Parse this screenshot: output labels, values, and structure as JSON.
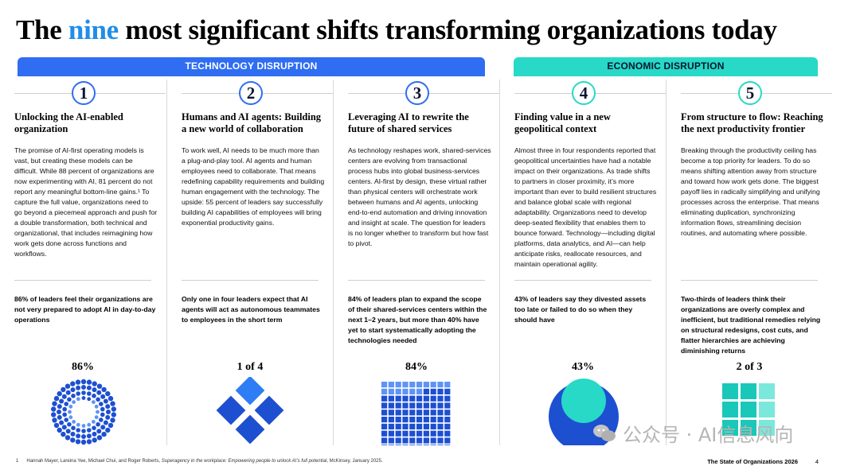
{
  "title": {
    "prefix": "The ",
    "accent": "nine",
    "suffix": " most significant shifts transforming organizations today"
  },
  "banners": {
    "technology": "TECHNOLOGY DISRUPTION",
    "economic": "ECONOMIC DISRUPTION"
  },
  "colors": {
    "blue": "#2f6df2",
    "teal": "#27d9c6",
    "accent_title": "#1f8ee8"
  },
  "columns": [
    {
      "number": "1",
      "heading": "Unlocking the AI-enabled organization",
      "body": "The promise of AI-first operating models is vast, but creating these models can be difficult. While 88 percent of organizations are now experimenting with AI, 81 percent do not report any meaningful bottom-line gains.¹ To capture the full value, organizations need to go beyond a piecemeal approach and push for a double transformation, both technical and organizational, that includes reimagining how work gets done across functions and workflows.",
      "stat": "86% of leaders feel their organizations are not very prepared to adopt AI in day-to-day operations",
      "big": "86%",
      "viz_value": 0.86
    },
    {
      "number": "2",
      "heading": "Humans and AI agents: Building a new world of collaboration",
      "body": "To work well, AI needs to be much more than a plug-and-play tool. AI agents and human employees need to collaborate. That means redefining capability requirements and building human engagement with the technology. The upside: 55 percent of leaders say successfully building AI capabilities of employees will bring exponential productivity gains.",
      "stat": "Only one in four leaders expect that AI agents will act as autonomous teammates to employees in the short term",
      "big": "1 of 4",
      "viz_value": 0.25
    },
    {
      "number": "3",
      "heading": "Leveraging AI to rewrite the future of shared services",
      "body": "As technology reshapes work, shared-services centers are evolving from transactional process hubs into global business-services centers. AI-first by design, these virtual rather than physical centers will orchestrate work between humans and AI agents, unlocking end-to-end automation and driving innovation and insight at scale. The question for leaders is no longer whether to transform but how fast to pivot.",
      "stat": "84% of leaders plan to expand the scope of their shared-services centers within the next 1–2 years, but more than 40% have yet to start systematically adopting the technologies needed",
      "big": "84%",
      "viz_value": 0.84
    },
    {
      "number": "4",
      "heading": "Finding value in a new geopolitical context",
      "body": "Almost three in four respondents reported that geopolitical uncertainties have had a notable impact on their organizations. As trade shifts to partners in closer proximity, it’s more important than ever to build resilient structures and balance global scale with regional adaptability. Organizations need to develop deep-seated flexibility that enables them to bounce forward. Technology—including digital platforms, data analytics, and AI—can help anticipate risks, reallocate resources, and maintain operational agility.",
      "stat": "43% of leaders say they divested assets too late or failed to do so when they should have",
      "big": "43%",
      "viz_value": 0.43
    },
    {
      "number": "5",
      "heading": "From structure to flow: Reaching the next productivity frontier",
      "body": "Breaking through the productivity ceiling has become a top priority for leaders. To do so means shifting attention away from structure and toward how work gets done. The biggest payoff lies in radically simplifying and unifying processes across the enterprise. That means eliminating duplication, synchronizing information flows, streamlining decision routines, and automating where possible.",
      "stat": "Two-thirds of leaders think their organizations are overly complex and inefficient, but traditional remedies relying on structural redesigns, cost cuts, and flatter hierarchies are achieving diminishing returns",
      "big": "2 of 3",
      "viz_value": 0.667
    }
  ],
  "footnote": {
    "marker": "1",
    "authors": "Hannah Mayer, Lareina Yee, Michael Chui, and Roger Roberts, ",
    "work": "Superagency in the workplace: Empowering people to unlock AI’s full potential",
    "source": ", McKinsey, January 2025."
  },
  "footer": {
    "publication": "The State of Organizations 2026",
    "page": "4"
  },
  "watermark": "公众号 · AI信息风向"
}
